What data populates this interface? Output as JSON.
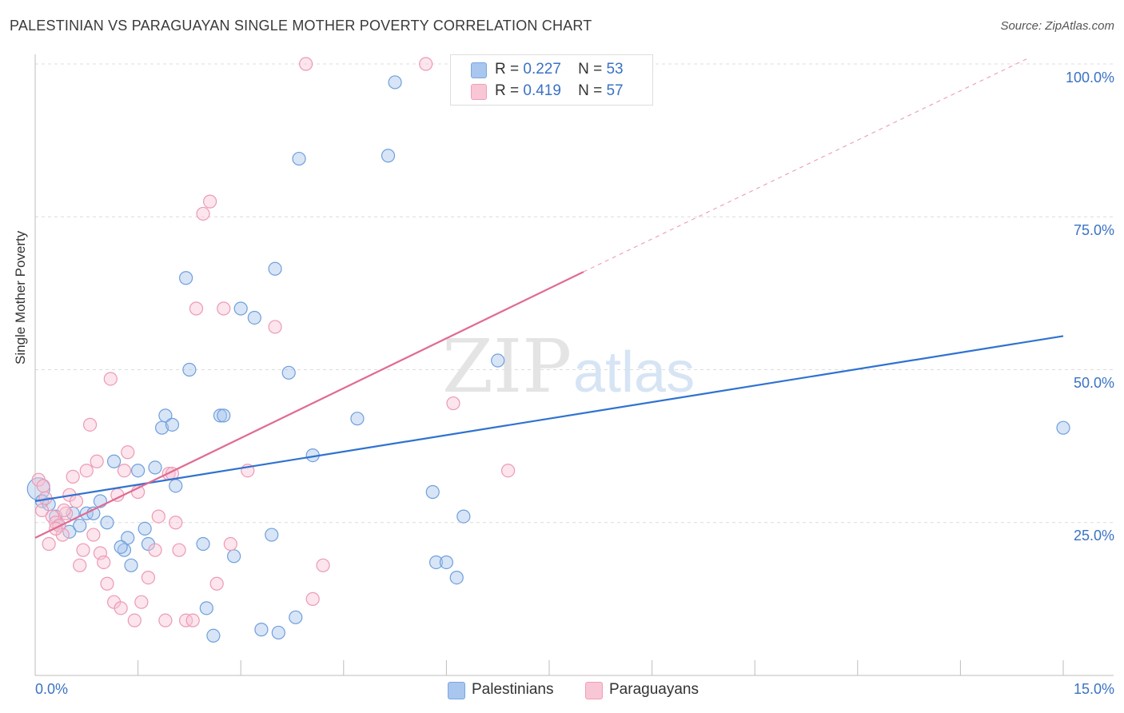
{
  "header": {
    "title": "PALESTINIAN VS PARAGUAYAN SINGLE MOTHER POVERTY CORRELATION CHART",
    "source": "Source: ZipAtlas.com"
  },
  "legend": {
    "items": [
      {
        "r_label": "R =",
        "r_value": "0.227",
        "n_label": "N =",
        "n_value": "53",
        "color": "#a9c6ee"
      },
      {
        "r_label": "R =",
        "r_value": "0.419",
        "n_label": "N =",
        "n_value": "57",
        "color": "#f5b7c9"
      }
    ]
  },
  "bottom_legend": [
    "Palestinians",
    "Paraguayans"
  ],
  "axis": {
    "ylabel": "Single Mother Poverty",
    "x_min_label": "0.0%",
    "x_max_label": "15.0%",
    "y_ticks": [
      "100.0%",
      "75.0%",
      "50.0%",
      "25.0%"
    ]
  },
  "watermark": {
    "zip": "ZIP",
    "atlas": "atlas"
  },
  "chart_data": {
    "type": "scatter",
    "xlabel": "",
    "ylabel": "Single Mother Poverty",
    "xlim": [
      0,
      15
    ],
    "ylim": [
      0,
      100
    ],
    "grid": true,
    "legend_position": "top-center",
    "series": [
      {
        "name": "Palestinians",
        "color": "#6aa0e0",
        "trend": {
          "x": [
            0,
            15
          ],
          "y": [
            28.5,
            55.5
          ]
        },
        "points": [
          [
            0.05,
            30.5
          ],
          [
            0.1,
            28.5
          ],
          [
            0.3,
            26
          ],
          [
            0.35,
            24.5
          ],
          [
            0.5,
            23.5
          ],
          [
            0.55,
            26.5
          ],
          [
            0.65,
            24.5
          ],
          [
            0.75,
            26.5
          ],
          [
            0.85,
            26.5
          ],
          [
            0.95,
            28.5
          ],
          [
            1.05,
            25
          ],
          [
            1.15,
            35
          ],
          [
            1.3,
            20.5
          ],
          [
            1.35,
            22.5
          ],
          [
            1.4,
            18
          ],
          [
            1.5,
            33.5
          ],
          [
            1.6,
            24
          ],
          [
            1.65,
            21.5
          ],
          [
            1.75,
            34
          ],
          [
            1.85,
            40.5
          ],
          [
            1.9,
            42.5
          ],
          [
            2.0,
            41
          ],
          [
            2.05,
            31
          ],
          [
            2.2,
            65
          ],
          [
            2.25,
            50
          ],
          [
            2.45,
            21.5
          ],
          [
            2.5,
            11
          ],
          [
            2.6,
            6.5
          ],
          [
            2.7,
            42.5
          ],
          [
            2.75,
            42.5
          ],
          [
            2.9,
            19.5
          ],
          [
            3.0,
            60
          ],
          [
            3.2,
            58.5
          ],
          [
            3.3,
            7.5
          ],
          [
            3.45,
            23
          ],
          [
            3.5,
            66.5
          ],
          [
            3.55,
            7
          ],
          [
            3.7,
            49.5
          ],
          [
            3.8,
            9.5
          ],
          [
            3.85,
            84.5
          ],
          [
            4.05,
            36
          ],
          [
            4.7,
            42
          ],
          [
            5.15,
            85
          ],
          [
            5.25,
            97
          ],
          [
            5.8,
            30
          ],
          [
            5.85,
            18.5
          ],
          [
            6.0,
            18.5
          ],
          [
            6.15,
            16
          ],
          [
            6.25,
            26
          ],
          [
            6.75,
            51.5
          ],
          [
            15.0,
            40.5
          ],
          [
            0.2,
            28
          ],
          [
            1.25,
            21
          ]
        ]
      },
      {
        "name": "Paraguayans",
        "color": "#ec8fac",
        "trend": {
          "x": [
            0,
            8
          ],
          "y": [
            22.5,
            66
          ]
        },
        "trend_dashed": {
          "x": [
            8,
            14.5
          ],
          "y": [
            66,
            101
          ]
        },
        "points": [
          [
            0.05,
            32
          ],
          [
            0.1,
            27
          ],
          [
            0.15,
            29
          ],
          [
            0.2,
            21.5
          ],
          [
            0.25,
            26
          ],
          [
            0.3,
            25
          ],
          [
            0.35,
            24.5
          ],
          [
            0.4,
            23
          ],
          [
            0.45,
            26.5
          ],
          [
            0.5,
            29.5
          ],
          [
            0.55,
            32.5
          ],
          [
            0.6,
            28.5
          ],
          [
            0.65,
            18
          ],
          [
            0.7,
            20.5
          ],
          [
            0.75,
            33.5
          ],
          [
            0.8,
            41
          ],
          [
            0.85,
            23
          ],
          [
            0.9,
            35
          ],
          [
            0.95,
            20
          ],
          [
            1.0,
            18.5
          ],
          [
            1.05,
            15
          ],
          [
            1.1,
            48.5
          ],
          [
            1.15,
            12
          ],
          [
            1.2,
            29.5
          ],
          [
            1.25,
            11
          ],
          [
            1.3,
            33.5
          ],
          [
            1.35,
            36.5
          ],
          [
            1.45,
            9
          ],
          [
            1.55,
            12
          ],
          [
            1.65,
            16
          ],
          [
            1.75,
            20.5
          ],
          [
            1.8,
            26
          ],
          [
            1.9,
            9
          ],
          [
            1.95,
            33
          ],
          [
            2.05,
            25
          ],
          [
            2.1,
            20.5
          ],
          [
            2.2,
            9
          ],
          [
            2.3,
            9
          ],
          [
            2.35,
            60
          ],
          [
            2.45,
            75.5
          ],
          [
            2.55,
            77.5
          ],
          [
            2.65,
            15
          ],
          [
            2.75,
            60
          ],
          [
            2.85,
            21.5
          ],
          [
            3.1,
            33.5
          ],
          [
            3.5,
            57
          ],
          [
            3.95,
            100
          ],
          [
            4.05,
            12.5
          ],
          [
            4.2,
            18
          ],
          [
            5.7,
            100
          ],
          [
            6.1,
            44.5
          ],
          [
            6.9,
            33.5
          ],
          [
            0.12,
            31
          ],
          [
            0.42,
            27
          ],
          [
            1.5,
            30
          ],
          [
            2.0,
            33
          ],
          [
            0.3,
            24
          ]
        ]
      }
    ]
  }
}
